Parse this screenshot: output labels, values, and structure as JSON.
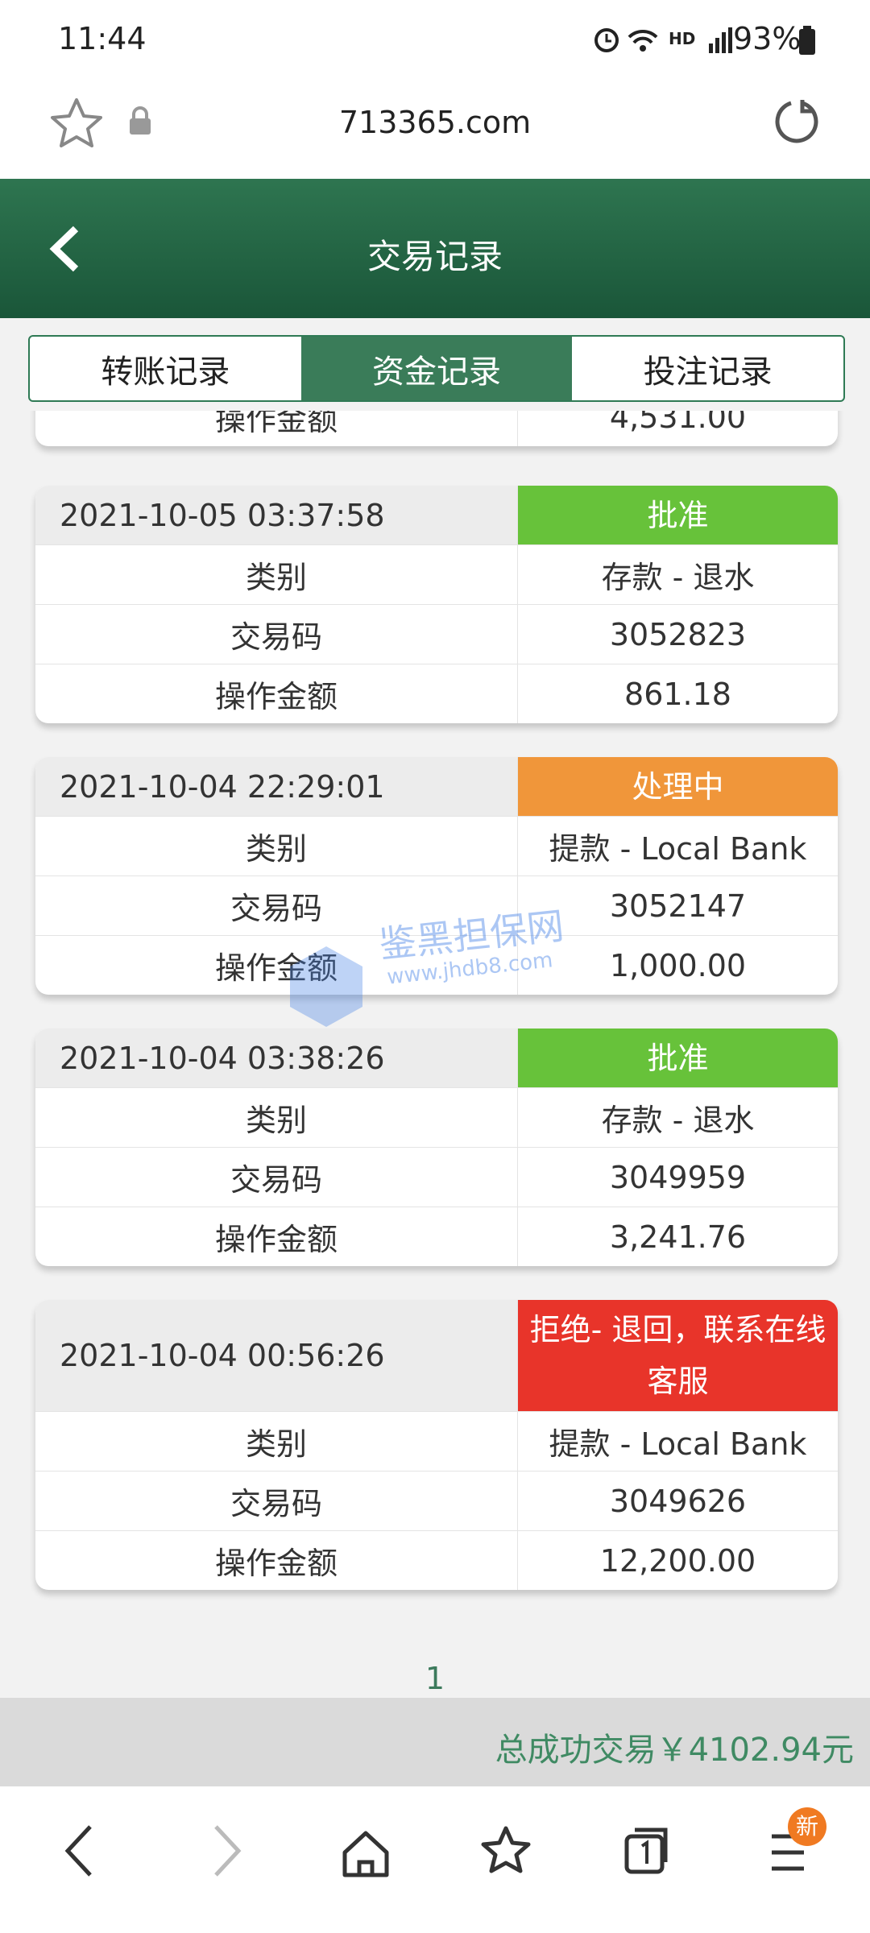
{
  "status_bar": {
    "time": "11:44",
    "network": "HD",
    "battery": "93%"
  },
  "browser": {
    "url": "713365.com"
  },
  "header": {
    "title": "交易记录"
  },
  "tabs": [
    "转账记录",
    "资金记录",
    "投注记录"
  ],
  "active_tab": 1,
  "partial_record": {
    "rows": [
      [
        "操作金额",
        "4,531.00"
      ]
    ]
  },
  "records": [
    {
      "time": "2021-10-05 03:37:58",
      "status": "批准",
      "status_color": "#67c23a",
      "rows": [
        [
          "类别",
          "存款 - 退水"
        ],
        [
          "交易码",
          "3052823"
        ],
        [
          "操作金额",
          "861.18"
        ]
      ]
    },
    {
      "time": "2021-10-04 22:29:01",
      "status": "处理中",
      "status_color": "#f0963a",
      "rows": [
        [
          "类别",
          "提款 - Local Bank"
        ],
        [
          "交易码",
          "3052147"
        ],
        [
          "操作金额",
          "1,000.00"
        ]
      ]
    },
    {
      "time": "2021-10-04 03:38:26",
      "status": "批准",
      "status_color": "#67c23a",
      "rows": [
        [
          "类别",
          "存款 - 退水"
        ],
        [
          "交易码",
          "3049959"
        ],
        [
          "操作金额",
          "3,241.76"
        ]
      ]
    },
    {
      "time": "2021-10-04 00:56:26",
      "status": "拒绝- 退回，联系在线客服",
      "status_color": "#e8342a",
      "rows": [
        [
          "类别",
          "提款 - Local Bank"
        ],
        [
          "交易码",
          "3049626"
        ],
        [
          "操作金额",
          "12,200.00"
        ]
      ]
    }
  ],
  "pagination": {
    "page": 1
  },
  "summary": "总成功交易￥4102.94元",
  "watermark": {
    "name": "鉴黑担保网",
    "url": "www.jhdb8.com"
  },
  "bottom_nav": {
    "badge": "新"
  }
}
